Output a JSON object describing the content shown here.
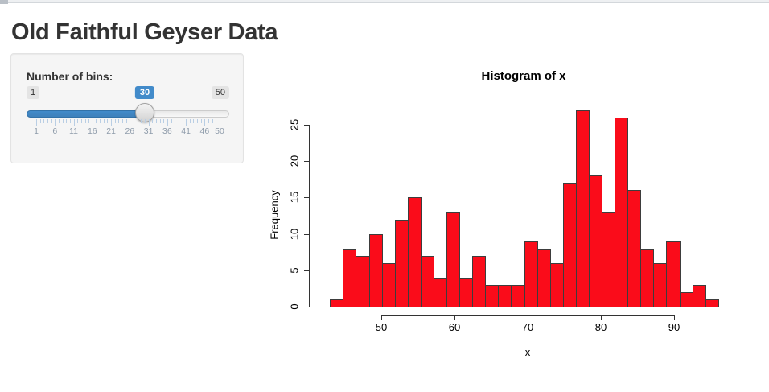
{
  "page": {
    "title": "Old Faithful Geyser Data"
  },
  "sidebar": {
    "bins_label": "Number of bins:",
    "slider": {
      "min": 1,
      "max": 50,
      "value": 30,
      "min_label": "1",
      "max_label": "50",
      "value_label": "30",
      "grid_labels": [
        1,
        6,
        11,
        16,
        21,
        26,
        31,
        36,
        41,
        46,
        50
      ],
      "accent_color": "#428bca"
    }
  },
  "chart_data": {
    "type": "bar",
    "title": "Histogram of x",
    "xlabel": "x",
    "ylabel": "Frequency",
    "bin_range": [
      43,
      96
    ],
    "bin_count": 30,
    "counts": [
      1,
      8,
      7,
      10,
      6,
      12,
      15,
      7,
      4,
      13,
      4,
      7,
      3,
      3,
      3,
      9,
      8,
      6,
      17,
      27,
      18,
      13,
      26,
      16,
      8,
      6,
      9,
      2,
      3,
      1
    ],
    "x_ticks": [
      50,
      60,
      70,
      80,
      90
    ],
    "y_ticks": [
      0,
      5,
      10,
      15,
      20,
      25
    ],
    "xlim": [
      43,
      96
    ],
    "ylim": [
      0,
      27
    ],
    "grid": false,
    "bar_color": "#fa0c1a",
    "bar_border": "#3d3d3d"
  }
}
